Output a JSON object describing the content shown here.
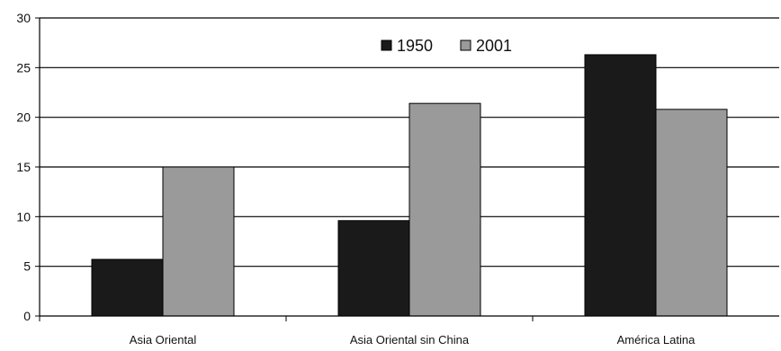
{
  "chart_data": {
    "type": "bar",
    "title": "",
    "xlabel": "",
    "ylabel": "",
    "categories": [
      "Asia Oriental",
      "Asia Oriental sin China",
      "América Latina"
    ],
    "series": [
      {
        "name": "1950",
        "values": [
          5.7,
          9.6,
          26.3
        ],
        "color": "#1a1a1a"
      },
      {
        "name": "2001",
        "values": [
          15.0,
          21.4,
          20.8
        ],
        "color": "#9a9a9a"
      }
    ],
    "ylim": [
      0,
      30
    ],
    "yticks": [
      0,
      5,
      10,
      15,
      20,
      25,
      30
    ],
    "grid": true,
    "legend": "top-center"
  }
}
